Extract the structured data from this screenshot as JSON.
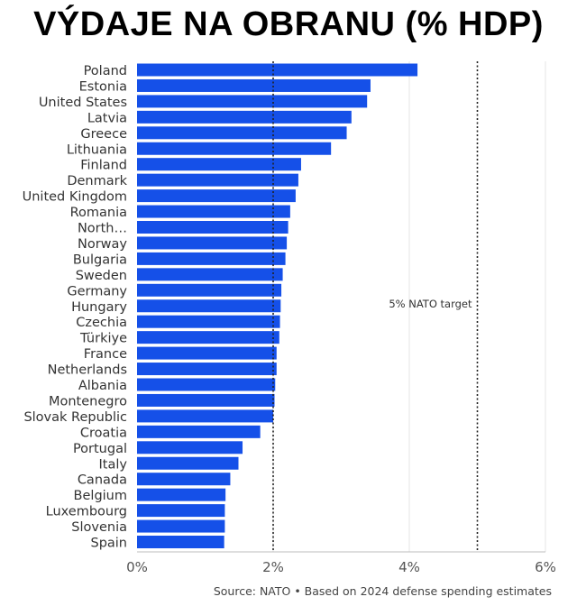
{
  "chart_data": {
    "type": "bar",
    "orientation": "horizontal",
    "title": "VÝDAJE NA OBRANU (% HDP)",
    "categories": [
      "Poland",
      "Estonia",
      "United States",
      "Latvia",
      "Greece",
      "Lithuania",
      "Finland",
      "Denmark",
      "United Kingdom",
      "Romania",
      "North…",
      "Norway",
      "Bulgaria",
      "Sweden",
      "Germany",
      "Hungary",
      "Czechia",
      "Türkiye",
      "France",
      "Netherlands",
      "Albania",
      "Montenegro",
      "Slovak Republic",
      "Croatia",
      "Portugal",
      "Italy",
      "Canada",
      "Belgium",
      "Luxembourg",
      "Slovenia",
      "Spain"
    ],
    "values": [
      4.12,
      3.43,
      3.38,
      3.15,
      3.08,
      2.85,
      2.41,
      2.37,
      2.33,
      2.25,
      2.22,
      2.2,
      2.18,
      2.14,
      2.12,
      2.11,
      2.1,
      2.09,
      2.05,
      2.05,
      2.03,
      2.02,
      2.0,
      1.81,
      1.55,
      1.49,
      1.37,
      1.3,
      1.29,
      1.29,
      1.28
    ],
    "xlim": [
      0,
      6
    ],
    "x_ticks": [
      "0%",
      "2%",
      "4%",
      "6%"
    ],
    "x_tick_values": [
      0,
      2,
      4,
      6
    ],
    "reference_lines": [
      {
        "value": 2,
        "label": ""
      },
      {
        "value": 5,
        "label": "5% NATO target"
      }
    ],
    "bar_color": "#1550e8",
    "grid": "vertical"
  },
  "footer": {
    "source": "Source: NATO • Based on 2024 defense spending estimates"
  }
}
